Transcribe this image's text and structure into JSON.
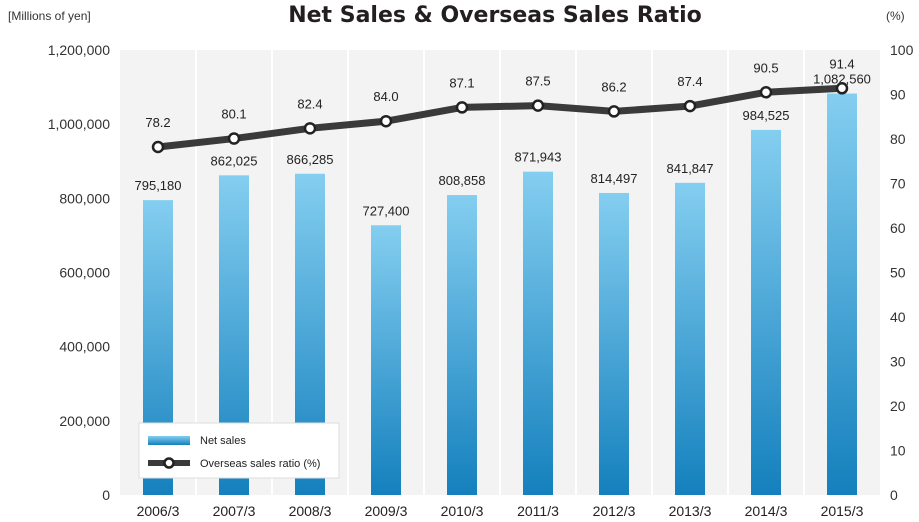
{
  "chart_data": {
    "type": "bar",
    "title": "Net Sales & Overseas Sales Ratio",
    "left_unit": "[Millions of yen]",
    "right_unit": "(%)",
    "categories": [
      "2006/3",
      "2007/3",
      "2008/3",
      "2009/3",
      "2010/3",
      "2011/3",
      "2012/3",
      "2013/3",
      "2014/3",
      "2015/3"
    ],
    "series": [
      {
        "name": "Net sales",
        "type": "bar",
        "axis": "left",
        "values": [
          795180,
          862025,
          866285,
          727400,
          808858,
          871943,
          814497,
          841847,
          984525,
          1082560
        ],
        "labels": [
          "795,180",
          "862,025",
          "866,285",
          "727,400",
          "808,858",
          "871,943",
          "814,497",
          "841,847",
          "984,525",
          "1,082,560"
        ]
      },
      {
        "name": "Overseas sales ratio (%)",
        "type": "line",
        "axis": "right",
        "values": [
          78.2,
          80.1,
          82.4,
          84.0,
          87.1,
          87.5,
          86.2,
          87.4,
          90.5,
          91.4
        ],
        "labels": [
          "78.2",
          "80.1",
          "82.4",
          "84.0",
          "87.1",
          "87.5",
          "86.2",
          "87.4",
          "90.5",
          "91.4"
        ]
      }
    ],
    "ylim_left": [
      0,
      1200000
    ],
    "yticks_left": [
      "0",
      "200,000",
      "400,000",
      "600,000",
      "800,000",
      "1,000,000",
      "1,200,000"
    ],
    "ylim_right": [
      0,
      100
    ],
    "yticks_right": [
      "0",
      "10",
      "20",
      "30",
      "40",
      "50",
      "60",
      "70",
      "80",
      "90",
      "100"
    ],
    "grid": "vertical-columns",
    "legend_position": "bottom-left",
    "colors": {
      "bar_top": "#84cef0",
      "bar_bottom": "#1480bd",
      "line": "#3a3a3a",
      "marker_fill": "#ffffff",
      "plot_bg": "#f3f3f3",
      "grid": "#ffffff"
    }
  }
}
